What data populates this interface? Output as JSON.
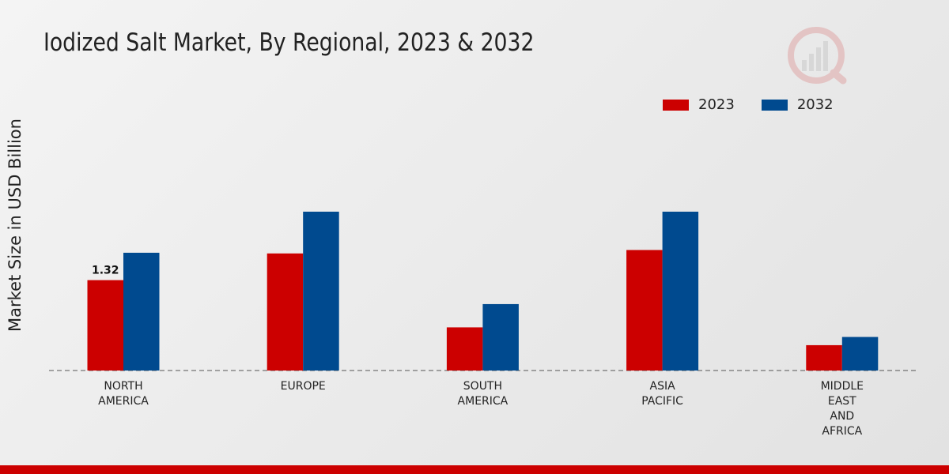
{
  "title": "Iodized Salt Market, By Regional, 2023 & 2032",
  "chart_data": {
    "type": "bar",
    "title": "Iodized Salt Market, By Regional, 2023 & 2032",
    "xlabel": "",
    "ylabel": "Market Size in USD Billion",
    "categories": [
      [
        "NORTH",
        "AMERICA"
      ],
      [
        "EUROPE"
      ],
      [
        "SOUTH",
        "AMERICA"
      ],
      [
        "ASIA",
        "PACIFIC"
      ],
      [
        "MIDDLE",
        "EAST",
        "AND",
        "AFRICA"
      ]
    ],
    "series": [
      {
        "name": "2023",
        "color": "#cc0000",
        "values": [
          1.32,
          1.71,
          0.63,
          1.76,
          0.37
        ]
      },
      {
        "name": "2032",
        "color": "#004a8f",
        "values": [
          1.72,
          2.32,
          0.97,
          2.32,
          0.49
        ]
      }
    ],
    "data_labels": [
      {
        "series": 0,
        "index": 0,
        "text": "1.32"
      }
    ],
    "ylim": [
      0,
      4.5
    ],
    "grid": false,
    "legend": "top-right"
  }
}
